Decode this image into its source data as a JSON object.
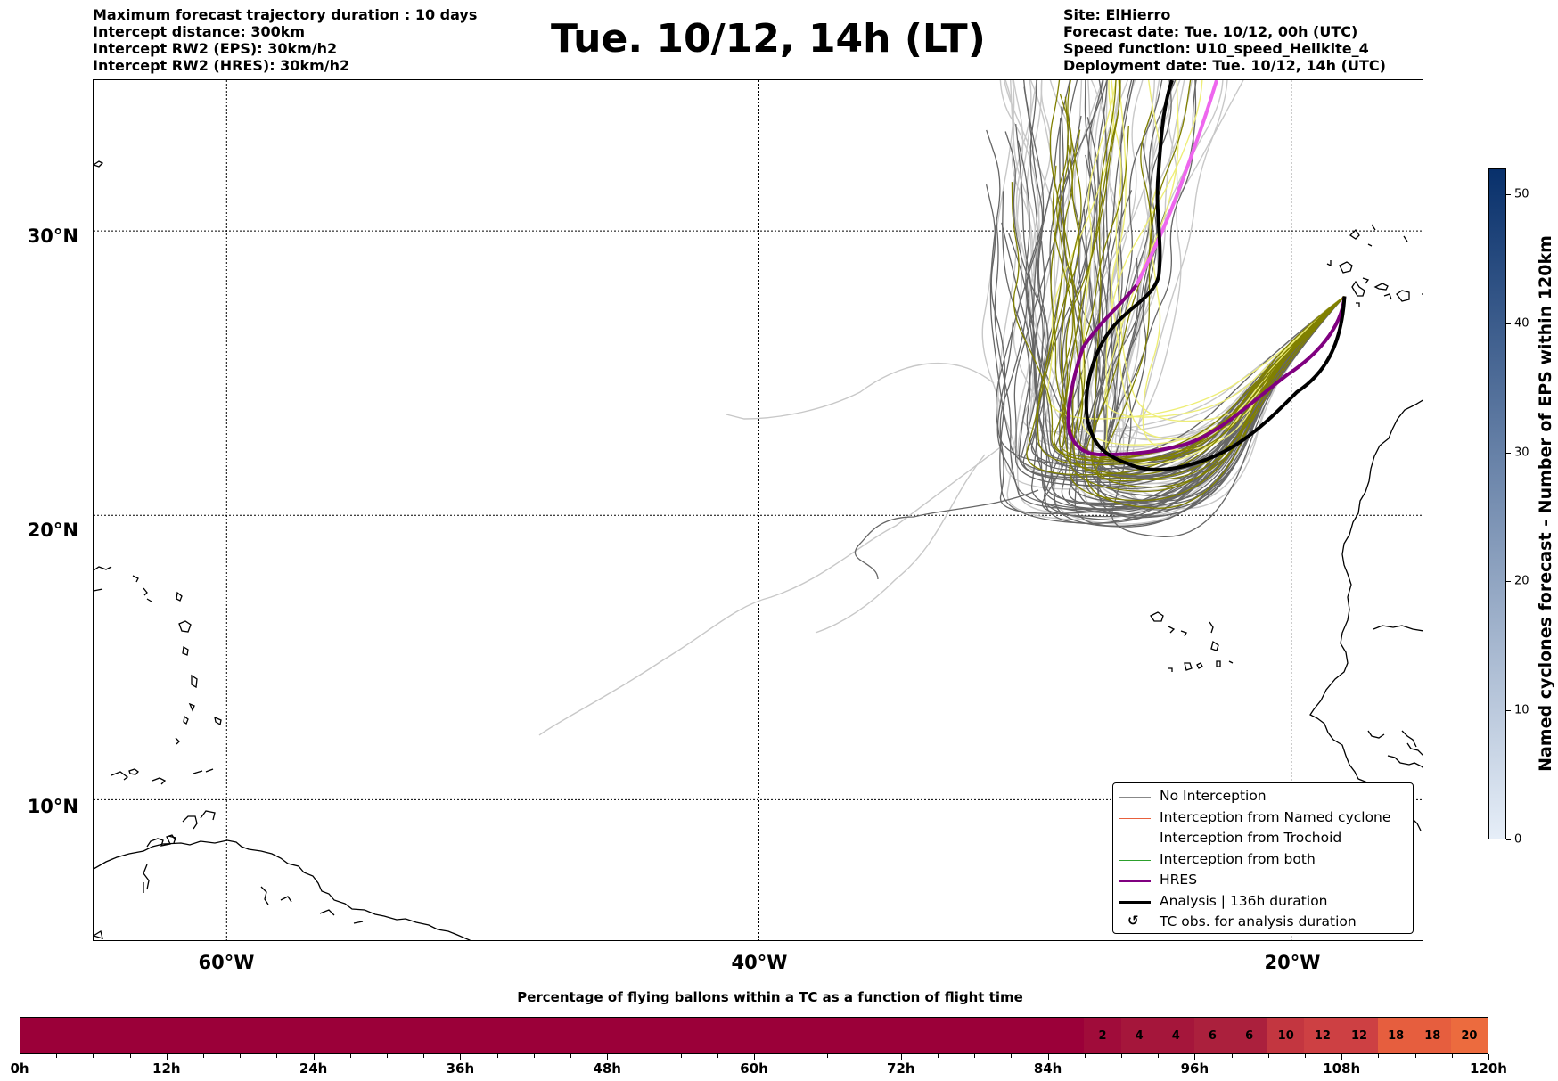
{
  "header": {
    "left_lines": [
      "Maximum forecast trajectory duration : 10 days",
      "Intercept distance: 300km",
      "Intercept RW2 (EPS):  30km/h2",
      "Intercept RW2 (HRES): 30km/h2"
    ],
    "title": "Tue. 10/12, 14h (LT)",
    "right_lines": [
      "Site: ElHierro",
      "Forecast date: Tue. 10/12, 00h (UTC)",
      "Speed function: U10_speed_Helikite_4",
      "Deployment date: Tue. 10/12, 14h (UTC)"
    ]
  },
  "map": {
    "extent": {
      "lon_min": -65,
      "lon_max": -15,
      "lat_min": 5,
      "lat_max": 35.3
    },
    "lat_labels": [
      {
        "lat": 30,
        "label": "30°N"
      },
      {
        "lat": 20,
        "label": "20°N"
      },
      {
        "lat": 10,
        "label": "10°N"
      }
    ],
    "lon_labels": [
      {
        "lon": -60,
        "label": "60°W"
      },
      {
        "lon": -40,
        "label": "40°W"
      },
      {
        "lon": -20,
        "label": "20°W"
      }
    ],
    "launch_site": {
      "lon": -18.0,
      "lat": 27.7
    },
    "colors": {
      "no_interception": "#666666",
      "no_interception_light": "#c8c8c8",
      "named_cyclone": "#e8603c",
      "trochoid": "#808000",
      "trochoid_light": "#eeee77",
      "both": "#2ca02c",
      "hres": "#800080",
      "hres_light": "#ee66ee",
      "analysis": "#000000"
    }
  },
  "legend": {
    "items": [
      {
        "label": "No Interception",
        "color": "#888888",
        "width": 1.2,
        "kind": "line"
      },
      {
        "label": "Interception from Named cyclone",
        "color": "#e8603c",
        "width": 1.2,
        "kind": "line"
      },
      {
        "label": "Interception from Trochoid",
        "color": "#808000",
        "width": 1.2,
        "kind": "line"
      },
      {
        "label": "Interception from both",
        "color": "#2ca02c",
        "width": 1.2,
        "kind": "line"
      },
      {
        "label": "HRES",
        "color": "#800080",
        "width": 3.5,
        "kind": "line"
      },
      {
        "label": "Analysis | 136h duration",
        "color": "#000000",
        "width": 3.5,
        "kind": "line"
      },
      {
        "label": "TC obs. for analysis duration",
        "color": "#000000",
        "kind": "symbol",
        "symbol": "↺"
      }
    ]
  },
  "colorbar": {
    "label": "Named cyclones forecast - Number of EPS within 120km",
    "min": 0,
    "max": 52,
    "ticks": [
      0,
      10,
      20,
      30,
      40,
      50
    ],
    "color_low": "#e6eef8",
    "color_high": "#08306b"
  },
  "flight_bar": {
    "title": "Percentage of flying ballons within a TC as a function of flight time",
    "hours_max": 120,
    "tick_labels": [
      "0h",
      "12h",
      "24h",
      "36h",
      "48h",
      "60h",
      "72h",
      "84h",
      "96h",
      "108h",
      "120h"
    ],
    "base_color": "#9b0039",
    "segments": [
      {
        "from_h": 0,
        "to_h": 87,
        "value": "",
        "color": "#9b0039"
      },
      {
        "from_h": 87,
        "to_h": 90,
        "value": "2",
        "color": "#a00c3a"
      },
      {
        "from_h": 90,
        "to_h": 93,
        "value": "4",
        "color": "#a5163b"
      },
      {
        "from_h": 93,
        "to_h": 96,
        "value": "4",
        "color": "#a5163b"
      },
      {
        "from_h": 96,
        "to_h": 99,
        "value": "6",
        "color": "#ab203d"
      },
      {
        "from_h": 99,
        "to_h": 102,
        "value": "6",
        "color": "#ab203d"
      },
      {
        "from_h": 102,
        "to_h": 105,
        "value": "10",
        "color": "#c33640"
      },
      {
        "from_h": 105,
        "to_h": 108,
        "value": "12",
        "color": "#cd4043"
      },
      {
        "from_h": 108,
        "to_h": 111,
        "value": "12",
        "color": "#cd4043"
      },
      {
        "from_h": 111,
        "to_h": 114,
        "value": "18",
        "color": "#e65e3e"
      },
      {
        "from_h": 114,
        "to_h": 117,
        "value": "18",
        "color": "#e65e3e"
      },
      {
        "from_h": 117,
        "to_h": 120,
        "value": "20",
        "color": "#ec6b3e"
      }
    ]
  }
}
